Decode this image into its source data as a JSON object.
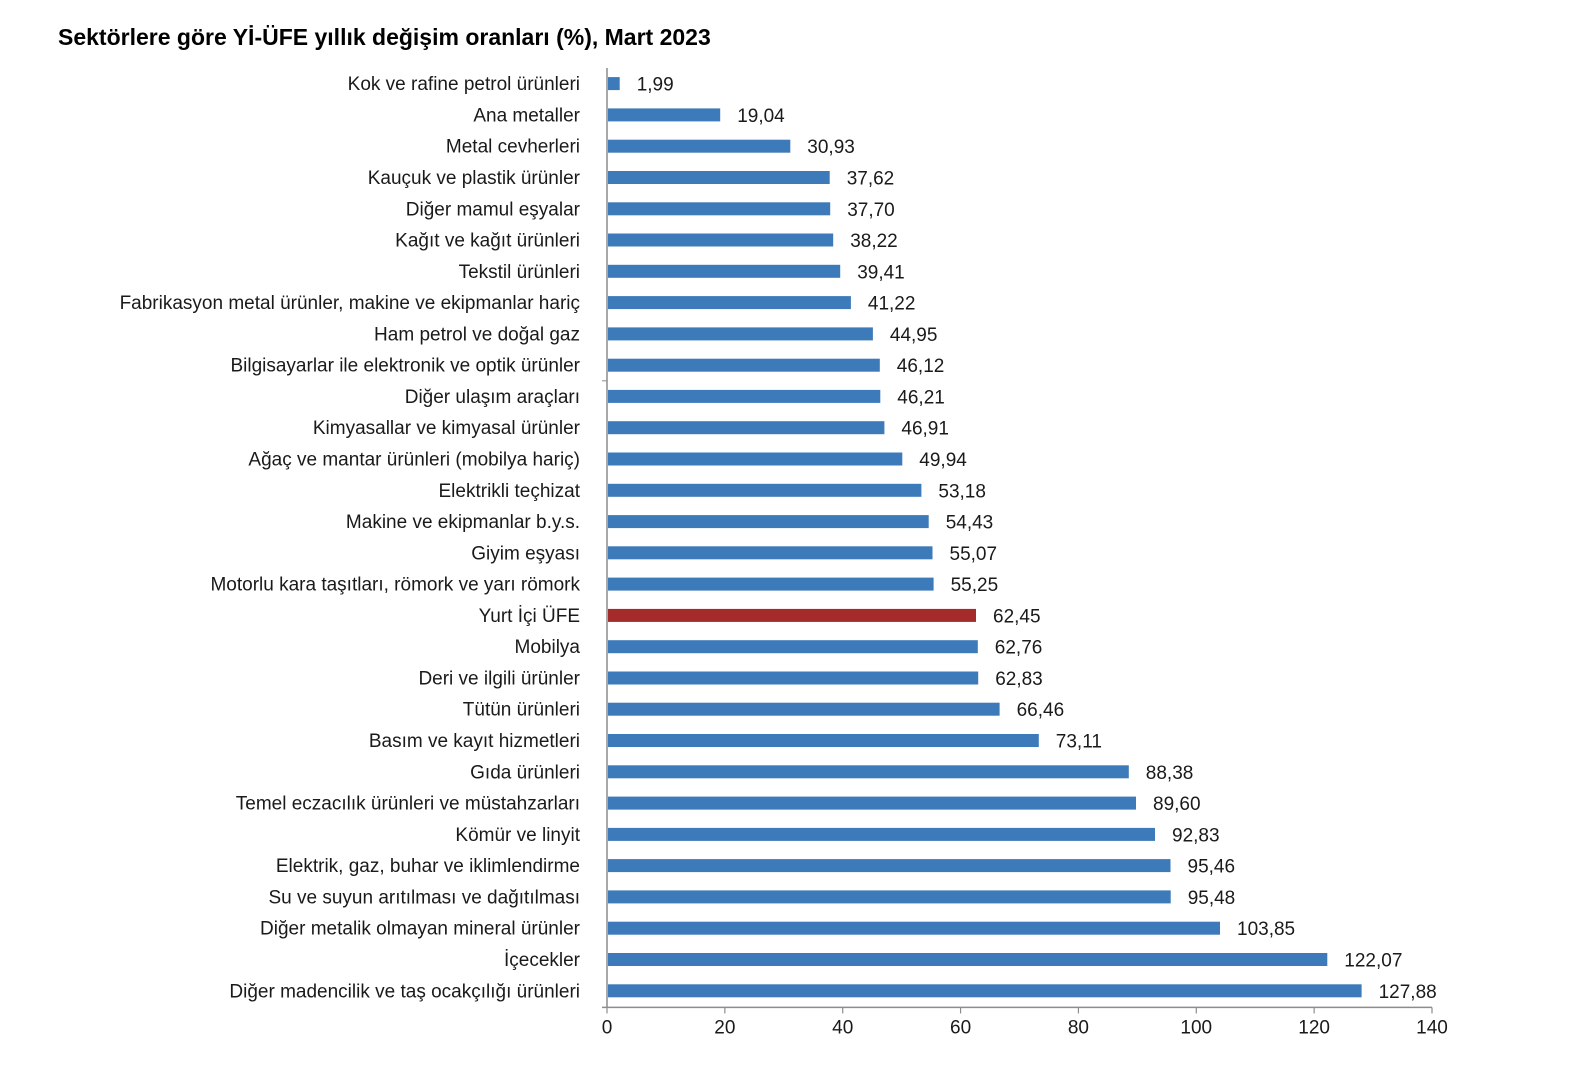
{
  "chart_data": {
    "type": "bar",
    "orientation": "horizontal",
    "title": "Sektörlere göre Yİ-ÜFE yıllık değişim oranları (%), Mart 2023",
    "xlabel": "",
    "ylabel": "",
    "xlim": [
      0,
      140
    ],
    "x_ticks": [
      0,
      20,
      40,
      60,
      80,
      100,
      120,
      140
    ],
    "grid": false,
    "legend": "none",
    "decimal_separator": ",",
    "colors": {
      "default": "#3d7ab9",
      "highlight": "#a52a2a"
    },
    "categories": [
      "Kok ve rafine petrol ürünleri",
      "Ana metaller",
      "Metal cevherleri",
      "Kauçuk ve plastik ürünler",
      "Diğer mamul eşyalar",
      "Kağıt ve kağıt ürünleri",
      "Tekstil ürünleri",
      "Fabrikasyon metal ürünler, makine ve ekipmanlar hariç",
      "Ham petrol ve doğal gaz",
      "Bilgisayarlar ile elektronik ve optik ürünler",
      "Diğer ulaşım araçları",
      "Kimyasallar ve kimyasal ürünler",
      "Ağaç ve mantar ürünleri (mobilya hariç)",
      "Elektrikli teçhizat",
      "Makine ve ekipmanlar b.y.s.",
      "Giyim eşyası",
      "Motorlu kara taşıtları, römork ve yarı römork",
      "Yurt İçi ÜFE",
      "Mobilya",
      "Deri ve ilgili ürünler",
      "Tütün ürünleri",
      "Basım ve kayıt hizmetleri",
      "Gıda ürünleri",
      "Temel eczacılık ürünleri ve müstahzarları",
      "Kömür ve linyit",
      "Elektrik, gaz, buhar ve iklimlendirme",
      "Su ve suyun arıtılması ve dağıtılması",
      "Diğer metalik olmayan mineral ürünler",
      "İçecekler",
      "Diğer madencilik ve taş ocakçılığı ürünleri"
    ],
    "values": [
      1.99,
      19.04,
      30.93,
      37.62,
      37.7,
      38.22,
      39.41,
      41.22,
      44.95,
      46.12,
      46.21,
      46.91,
      49.94,
      53.18,
      54.43,
      55.07,
      55.25,
      62.45,
      62.76,
      62.83,
      66.46,
      73.11,
      88.38,
      89.6,
      92.83,
      95.46,
      95.48,
      103.85,
      122.07,
      127.88
    ],
    "value_labels": [
      "1,99",
      "19,04",
      "30,93",
      "37,62",
      "37,70",
      "38,22",
      "39,41",
      "41,22",
      "44,95",
      "46,12",
      "46,21",
      "46,91",
      "49,94",
      "53,18",
      "54,43",
      "55,07",
      "55,25",
      "62,45",
      "62,76",
      "62,83",
      "66,46",
      "73,11",
      "88,38",
      "89,60",
      "92,83",
      "95,46",
      "95,48",
      "103,85",
      "122,07",
      "127,88"
    ],
    "highlight_category": "Yurt İçi ÜFE"
  }
}
